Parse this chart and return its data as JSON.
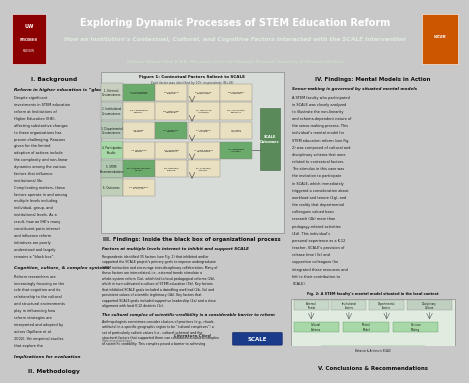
{
  "title": "Exploring Dynamic Processes of STEM Education Reform",
  "subtitle": "How an Institution’s Contextual, Cultural, and Cognitive Factors Interacted with the SCALE Intervention",
  "author": "Matthew Tadashi Hora, M.A.A., Wisconsin Center for Education Research, University of Wisconsin-Madison",
  "header_bg": "#3a6e3a",
  "body_bg": "#c8c8c8",
  "left_col_bg": "#dcdcdc",
  "center_col_bg": "#e8e8e0",
  "right_col_bg": "#dcdcdc",
  "fig1_bg": "#d0d8d0",
  "fig2_bg": "#e0ece0",
  "section_title_color": "#1a1a1a",
  "heading_color": "#111111",
  "text_color": "#111111",
  "green_box": "#6aaa6a",
  "light_green_box": "#b8d8b8",
  "tan_box": "#e8e0c0",
  "scale_box_color": "#5a8a5a",
  "row_label_bg": "#c0c8b8"
}
